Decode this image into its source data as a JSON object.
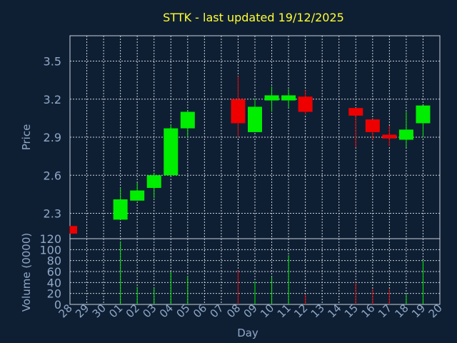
{
  "chart_data": {
    "type": "candlestick",
    "title": "STTK - last updated 19/12/2025",
    "xlabel": "Day",
    "price_panel": {
      "ylabel": "Price",
      "ylim": [
        2.1,
        3.7
      ],
      "yticks": [
        "2.3",
        "2.6",
        "2.9",
        "3.2",
        "3.5"
      ],
      "ytick_values": [
        2.3,
        2.6,
        2.9,
        3.2,
        3.5
      ],
      "grid": true
    },
    "volume_panel": {
      "ylabel": "Volume (0000)",
      "ylim": [
        0,
        120
      ],
      "yticks": [
        "0",
        "20",
        "40",
        "60",
        "80",
        "100",
        "120"
      ],
      "ytick_values": [
        0,
        20,
        40,
        60,
        80,
        100,
        120
      ],
      "grid": true
    },
    "days": [
      "28",
      "29",
      "30",
      "01",
      "02",
      "03",
      "04",
      "05",
      "06",
      "07",
      "08",
      "09",
      "10",
      "11",
      "12",
      "13",
      "14",
      "15",
      "16",
      "17",
      "18",
      "19",
      "20"
    ],
    "candles": [
      {
        "day": "28",
        "open": 2.2,
        "high": 2.2,
        "low": 2.14,
        "close": 2.14,
        "volume": 0
      },
      {
        "day": "01",
        "open": 2.25,
        "high": 2.5,
        "low": 2.25,
        "close": 2.41,
        "volume": 115
      },
      {
        "day": "02",
        "open": 2.4,
        "high": 2.54,
        "low": 2.4,
        "close": 2.48,
        "volume": 32
      },
      {
        "day": "03",
        "open": 2.5,
        "high": 2.62,
        "low": 2.42,
        "close": 2.6,
        "volume": 30
      },
      {
        "day": "04",
        "open": 2.6,
        "high": 3.0,
        "low": 2.6,
        "close": 2.97,
        "volume": 60
      },
      {
        "day": "05",
        "open": 2.97,
        "high": 3.11,
        "low": 2.9,
        "close": 3.1,
        "volume": 52
      },
      {
        "day": "08",
        "open": 3.2,
        "high": 3.38,
        "low": 2.9,
        "close": 3.01,
        "volume": 62
      },
      {
        "day": "09",
        "open": 2.94,
        "high": 3.2,
        "low": 2.94,
        "close": 3.14,
        "volume": 42
      },
      {
        "day": "10",
        "open": 3.19,
        "high": 3.3,
        "low": 3.1,
        "close": 3.23,
        "volume": 50
      },
      {
        "day": "11",
        "open": 3.19,
        "high": 3.28,
        "low": 3.13,
        "close": 3.23,
        "volume": 90
      },
      {
        "day": "12",
        "open": 3.22,
        "high": 3.27,
        "low": 3.08,
        "close": 3.1,
        "volume": 18
      },
      {
        "day": "15",
        "open": 3.13,
        "high": 3.13,
        "low": 2.82,
        "close": 3.07,
        "volume": 40
      },
      {
        "day": "16",
        "open": 3.04,
        "high": 3.04,
        "low": 2.88,
        "close": 2.94,
        "volume": 28
      },
      {
        "day": "17",
        "open": 2.92,
        "high": 2.99,
        "low": 2.83,
        "close": 2.89,
        "volume": 28
      },
      {
        "day": "18",
        "open": 2.88,
        "high": 3.1,
        "low": 2.82,
        "close": 2.96,
        "volume": 18
      },
      {
        "day": "19",
        "open": 3.01,
        "high": 3.15,
        "low": 2.9,
        "close": 3.15,
        "volume": 80
      }
    ]
  },
  "colors": {
    "background": "#0f1f33",
    "grid": "#c8d2dc",
    "up": "#00ee00",
    "down": "#ee0000",
    "axis_text": "#8fa8c8",
    "title": "#ffff33"
  }
}
